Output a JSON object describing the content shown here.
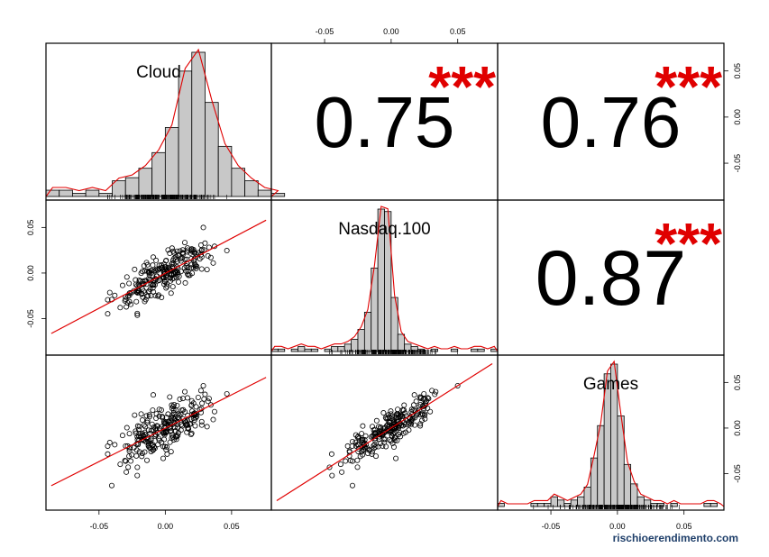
{
  "chart_data": {
    "type": "scatter",
    "title": "",
    "variables": [
      "Cloud",
      "Nasdaq.100",
      "Games"
    ],
    "axis_range": [
      -0.09,
      0.08
    ],
    "ticks": [
      -0.05,
      0.0,
      0.05
    ],
    "tick_labels": [
      "-0.05",
      "0.00",
      "0.05"
    ],
    "correlations": [
      {
        "pair": "Cloud-Nasdaq.100",
        "value": "0.75",
        "stars": "***"
      },
      {
        "pair": "Cloud-Games",
        "value": "0.76",
        "stars": "***"
      },
      {
        "pair": "Nasdaq.100-Games",
        "value": "0.87",
        "stars": "***"
      }
    ],
    "histograms": [
      {
        "variable": "Cloud",
        "bin_width": 0.01,
        "bin_start": -0.09,
        "counts": [
          2,
          2,
          1,
          2,
          1,
          5,
          6,
          9,
          14,
          22,
          40,
          46,
          30,
          16,
          9,
          5,
          2,
          1
        ]
      },
      {
        "variable": "Nasdaq.100",
        "bin_width": 0.005,
        "bin_start": -0.09,
        "counts": [
          1,
          1,
          0,
          1,
          2,
          1,
          1,
          0,
          1,
          2,
          2,
          3,
          5,
          9,
          16,
          34,
          58,
          57,
          22,
          7,
          3,
          2,
          1,
          0,
          1,
          0,
          0,
          1,
          0,
          0,
          1,
          1,
          0,
          1
        ]
      },
      {
        "variable": "Games",
        "bin_width": 0.005,
        "bin_start": -0.09,
        "counts": [
          1,
          0,
          0,
          0,
          0,
          1,
          1,
          1,
          3,
          2,
          1,
          2,
          3,
          6,
          15,
          25,
          41,
          44,
          28,
          13,
          7,
          3,
          2,
          1,
          1,
          0,
          1,
          0,
          0,
          0,
          0,
          1,
          1,
          0
        ]
      }
    ],
    "series_color": "#e00000",
    "bar_color": "#c8c8c8"
  },
  "credit": {
    "text": "rischioerendimento.com",
    "color": "#1f3f6a"
  }
}
